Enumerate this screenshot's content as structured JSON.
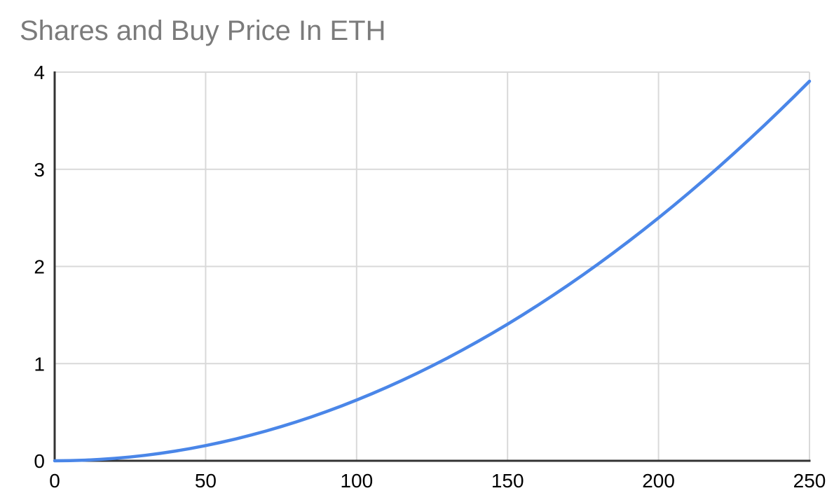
{
  "chart_data": {
    "type": "line",
    "title": "Shares and Buy Price In ETH",
    "xlabel": "",
    "ylabel": "",
    "xlim": [
      0,
      250
    ],
    "ylim": [
      0,
      4
    ],
    "x_ticks": [
      0,
      50,
      100,
      150,
      200,
      250
    ],
    "y_ticks": [
      0,
      1,
      2,
      3,
      4
    ],
    "grid": true,
    "legend_position": "none",
    "series": [
      {
        "x": [
          0,
          5,
          10,
          15,
          20,
          25,
          30,
          35,
          40,
          45,
          50,
          55,
          60,
          65,
          70,
          75,
          80,
          85,
          90,
          95,
          100,
          105,
          110,
          115,
          120,
          125,
          130,
          135,
          140,
          145,
          150,
          155,
          160,
          165,
          170,
          175,
          180,
          185,
          190,
          195,
          200,
          205,
          210,
          215,
          220,
          225,
          230,
          235,
          240,
          245,
          250
        ],
        "y": [
          0,
          0.0016,
          0.0063,
          0.0141,
          0.025,
          0.0391,
          0.0563,
          0.0766,
          0.1,
          0.1266,
          0.1563,
          0.1891,
          0.225,
          0.2641,
          0.3063,
          0.3516,
          0.4,
          0.4516,
          0.5063,
          0.5641,
          0.625,
          0.6891,
          0.7563,
          0.8266,
          0.9,
          0.9766,
          1.0563,
          1.1391,
          1.225,
          1.3141,
          1.4063,
          1.5016,
          1.6,
          1.7016,
          1.8063,
          1.9141,
          2.025,
          2.1391,
          2.2563,
          2.3766,
          2.5,
          2.6266,
          2.7563,
          2.8891,
          3.025,
          3.1641,
          3.3063,
          3.4516,
          3.6,
          3.7516,
          3.9063
        ]
      }
    ],
    "colors": {
      "line": "#4a86e8",
      "gridline": "#d9d9d9",
      "axis": "#333333",
      "title": "#7b7b7b",
      "tick_label": "#000000",
      "background": "#ffffff"
    }
  }
}
